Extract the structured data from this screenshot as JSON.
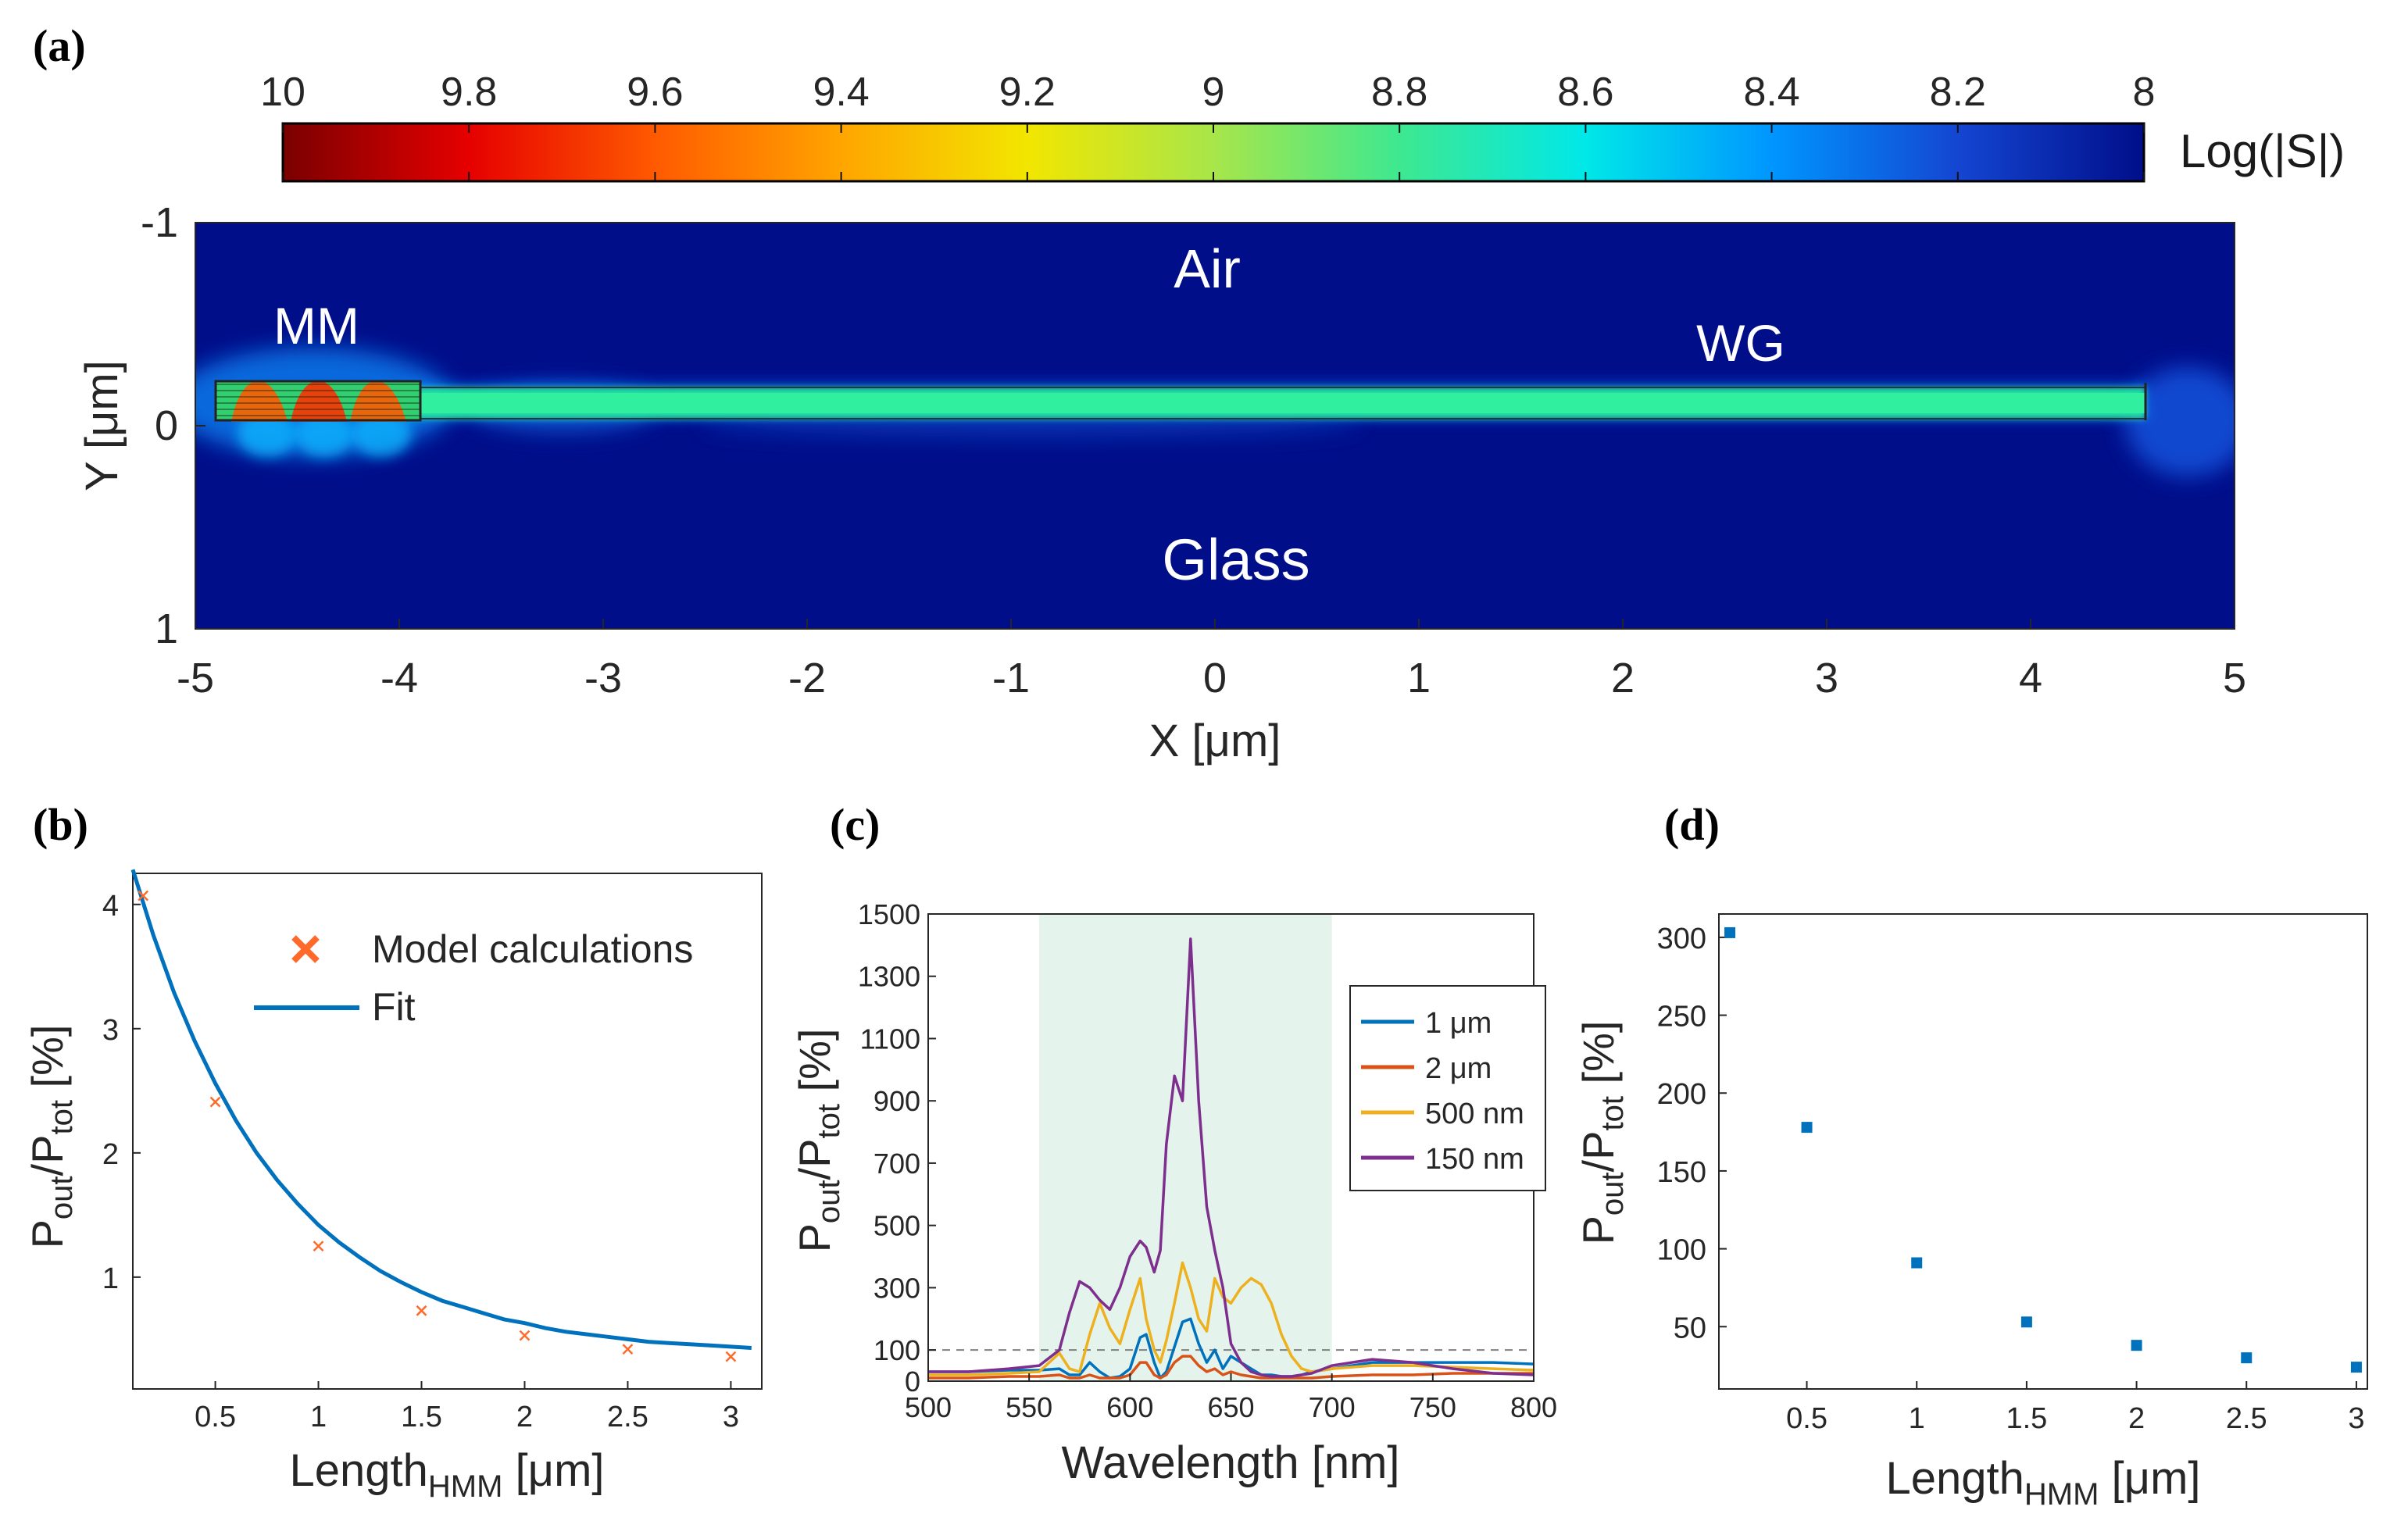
{
  "colors": {
    "background": "#ffffff",
    "axis": "#262626",
    "tick": "#262626",
    "map_bg": "#000e8a",
    "waveguide": "#22e0a0",
    "shade_c": "#e4f4ec",
    "series_blue": "#0072bd",
    "series_orange": "#d95319",
    "series_yellow": "#edb120",
    "series_purple": "#7e2f8e",
    "marker_orange": "#ff6a2b"
  },
  "panels": {
    "a": {
      "label": "(a)",
      "colorbar": {
        "label": "Log(|S|)",
        "ticks": [
          "10",
          "9.8",
          "9.6",
          "9.4",
          "9.2",
          "9",
          "8.8",
          "8.6",
          "8.4",
          "8.2",
          "8"
        ],
        "stops": [
          "#7a0000",
          "#e60000",
          "#ff5a00",
          "#ffa500",
          "#f2e600",
          "#a8e64a",
          "#3ee890",
          "#00e8e8",
          "#0096ff",
          "#1446d2",
          "#000e8a"
        ]
      },
      "map": {
        "xlabel": "X [μm]",
        "ylabel": "Y [μm]",
        "xticks": [
          "-5",
          "-4",
          "-3",
          "-2",
          "-1",
          "0",
          "1",
          "2",
          "3",
          "4",
          "5"
        ],
        "yticks": [
          "-1",
          "0",
          "1"
        ],
        "annotations": {
          "air": "Air",
          "mm": "MM",
          "wg": "WG",
          "glass": "Glass"
        }
      }
    },
    "b": {
      "label": "(b)"
    },
    "c": {
      "label": "(c)"
    },
    "d": {
      "label": "(d)"
    }
  },
  "chart_data": [
    {
      "id": "a",
      "type": "heatmap",
      "title": "",
      "xlabel": "X [μm]",
      "ylabel": "Y [μm]",
      "xlim": [
        -5,
        5
      ],
      "ylim": [
        -1,
        1
      ],
      "colorbar_label": "Log(|S|)",
      "colorbar_range": [
        10,
        8
      ],
      "regions": [
        "Air",
        "MM",
        "WG",
        "Glass"
      ]
    },
    {
      "id": "b",
      "type": "line",
      "xlabel": "Length",
      "xlabel_sub": "HMM",
      "xlabel_unit": " [μm]",
      "ylabel_main": "P",
      "ylabel_sub1": "out",
      "ylabel_mid": "/P",
      "ylabel_sub2": "tot",
      "ylabel_unit": " [%]",
      "xlim": [
        0.1,
        3.15
      ],
      "ylim": [
        0.1,
        4.25
      ],
      "xticks": [
        "0.5",
        "1",
        "1.5",
        "2",
        "2.5",
        "3"
      ],
      "yticks": [
        "1",
        "2",
        "3",
        "4"
      ],
      "legend": [
        "Model calculations",
        "Fit"
      ],
      "model_calculations": {
        "x": [
          0.15,
          0.5,
          1.0,
          1.5,
          2.0,
          2.5,
          3.0
        ],
        "y": [
          4.07,
          2.41,
          1.25,
          0.73,
          0.53,
          0.42,
          0.36
        ]
      },
      "fit": {
        "x": [
          0.1,
          0.2,
          0.3,
          0.4,
          0.5,
          0.6,
          0.7,
          0.8,
          0.9,
          1.0,
          1.1,
          1.2,
          1.3,
          1.4,
          1.5,
          1.6,
          1.7,
          1.8,
          1.9,
          2.0,
          2.1,
          2.2,
          2.3,
          2.4,
          2.5,
          2.6,
          2.7,
          2.8,
          2.9,
          3.0,
          3.1
        ],
        "y": [
          4.28,
          3.75,
          3.29,
          2.9,
          2.56,
          2.26,
          2.0,
          1.78,
          1.59,
          1.42,
          1.28,
          1.16,
          1.05,
          0.96,
          0.88,
          0.81,
          0.76,
          0.71,
          0.66,
          0.63,
          0.59,
          0.56,
          0.54,
          0.52,
          0.5,
          0.48,
          0.47,
          0.46,
          0.45,
          0.44,
          0.43
        ]
      }
    },
    {
      "id": "c",
      "type": "line",
      "xlabel": "Wavelength [nm]",
      "ylabel_main": "P",
      "ylabel_sub1": "out",
      "ylabel_mid": "/P",
      "ylabel_sub2": "tot",
      "ylabel_unit": " [%]",
      "xlim": [
        500,
        800
      ],
      "ylim": [
        0,
        1500
      ],
      "xticks": [
        "500",
        "550",
        "600",
        "650",
        "700",
        "750",
        "800"
      ],
      "yticks": [
        "0",
        "100",
        "300",
        "500",
        "700",
        "900",
        "1100",
        "1300",
        "1500"
      ],
      "xtick_values": [
        500,
        550,
        600,
        650,
        700,
        750,
        800
      ],
      "ytick_values": [
        0,
        100,
        300,
        500,
        700,
        900,
        1100,
        1300,
        1500
      ],
      "shaded_band": [
        555,
        700
      ],
      "reference_line": 100,
      "x": [
        500,
        520,
        540,
        555,
        565,
        570,
        575,
        580,
        585,
        590,
        595,
        600,
        605,
        608,
        612,
        615,
        618,
        622,
        626,
        630,
        634,
        638,
        642,
        646,
        650,
        655,
        660,
        665,
        670,
        675,
        680,
        685,
        690,
        700,
        720,
        740,
        760,
        780,
        800
      ],
      "series": [
        {
          "name": "1 μm",
          "values": [
            30,
            30,
            35,
            35,
            40,
            20,
            20,
            60,
            30,
            10,
            15,
            40,
            140,
            150,
            60,
            10,
            30,
            110,
            190,
            200,
            120,
            60,
            100,
            40,
            80,
            60,
            40,
            20,
            20,
            15,
            15,
            20,
            30,
            40,
            60,
            60,
            60,
            60,
            55
          ]
        },
        {
          "name": "2 μm",
          "values": [
            10,
            10,
            15,
            15,
            20,
            10,
            10,
            20,
            10,
            10,
            10,
            20,
            60,
            60,
            20,
            10,
            20,
            60,
            80,
            80,
            50,
            30,
            40,
            20,
            30,
            20,
            15,
            10,
            10,
            10,
            10,
            10,
            10,
            15,
            20,
            20,
            25,
            25,
            25
          ]
        },
        {
          "name": "500 nm",
          "values": [
            20,
            20,
            25,
            30,
            90,
            40,
            30,
            150,
            250,
            170,
            120,
            230,
            330,
            200,
            100,
            60,
            130,
            250,
            380,
            300,
            200,
            160,
            330,
            270,
            250,
            300,
            330,
            310,
            250,
            150,
            80,
            40,
            30,
            40,
            50,
            50,
            45,
            40,
            35
          ]
        },
        {
          "name": "150 nm",
          "values": [
            30,
            30,
            40,
            50,
            100,
            220,
            320,
            300,
            260,
            230,
            300,
            400,
            450,
            430,
            350,
            420,
            760,
            980,
            900,
            1420,
            900,
            560,
            420,
            300,
            120,
            60,
            30,
            20,
            15,
            15,
            15,
            20,
            25,
            50,
            70,
            60,
            40,
            25,
            20
          ]
        }
      ]
    },
    {
      "id": "d",
      "type": "scatter",
      "xlabel": "Length",
      "xlabel_sub": "HMM",
      "xlabel_unit": " [μm]",
      "ylabel_main": "P",
      "ylabel_sub1": "out",
      "ylabel_mid": "/P",
      "ylabel_sub2": "tot",
      "ylabel_unit": " [%]",
      "xlim": [
        0.1,
        3.05
      ],
      "ylim": [
        10,
        315
      ],
      "xticks": [
        "0.5",
        "1",
        "1.5",
        "2",
        "2.5",
        "3"
      ],
      "yticks": [
        "50",
        "100",
        "150",
        "200",
        "250",
        "300"
      ],
      "xtick_values": [
        0.5,
        1,
        1.5,
        2,
        2.5,
        3
      ],
      "ytick_values": [
        50,
        100,
        150,
        200,
        250,
        300
      ],
      "x": [
        0.15,
        0.5,
        1.0,
        1.5,
        2.0,
        2.5,
        3.0
      ],
      "y": [
        303,
        178,
        91,
        53,
        38,
        30,
        24
      ]
    }
  ]
}
